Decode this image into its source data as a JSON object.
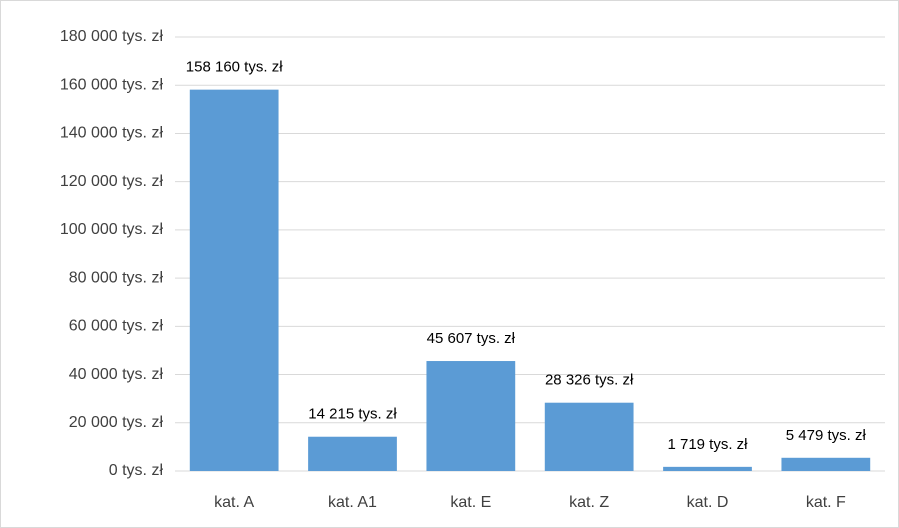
{
  "chart_data": {
    "type": "bar",
    "categories": [
      "kat. A",
      "kat. A1",
      "kat. E",
      "kat. Z",
      "kat. D",
      "kat. F"
    ],
    "values": [
      158160,
      14215,
      45607,
      28326,
      1719,
      5479
    ],
    "value_labels": [
      "158 160 tys. zł",
      "14 215 tys. zł",
      "45 607 tys. zł",
      "28 326 tys. zł",
      "1 719 tys. zł",
      "5 479 tys. zł"
    ],
    "color": "#5b9bd5",
    "ylim": [
      0,
      180000
    ],
    "yticks": [
      {
        "value": 0,
        "label": "0 tys. zł"
      },
      {
        "value": 20000,
        "label": "20 000 tys. zł"
      },
      {
        "value": 40000,
        "label": "40 000 tys. zł"
      },
      {
        "value": 60000,
        "label": "60 000 tys. zł"
      },
      {
        "value": 80000,
        "label": "80 000 tys. zł"
      },
      {
        "value": 100000,
        "label": "100 000 tys. zł"
      },
      {
        "value": 120000,
        "label": "120 000 tys. zł"
      },
      {
        "value": 140000,
        "label": "140 000 tys. zł"
      },
      {
        "value": 160000,
        "label": "160 000 tys. zł"
      },
      {
        "value": 180000,
        "label": "180 000 tys. zł"
      }
    ],
    "grid": true
  }
}
